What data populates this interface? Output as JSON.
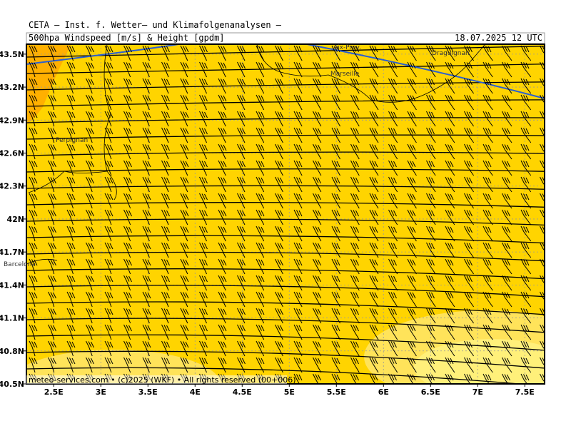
{
  "header": {
    "title": "CETA — Inst. f. Wetter— und Klimafolgenanalysen —",
    "subtitle": "500hpa Windspeed [m/s] & Height [gpdm]",
    "date": "18.07.2025 12 UTC"
  },
  "map": {
    "lonlim": [
      2.21,
      7.71
    ],
    "latlim": [
      40.5,
      43.59
    ],
    "lat_ticks": [
      {
        "value": 43.5,
        "label": "43.5N"
      },
      {
        "value": 43.2,
        "label": "43.2N"
      },
      {
        "value": 42.9,
        "label": "42.9N"
      },
      {
        "value": 42.6,
        "label": "42.6N"
      },
      {
        "value": 42.3,
        "label": "42.3N"
      },
      {
        "value": 42,
        "label": "42N"
      },
      {
        "value": 41.7,
        "label": "41.7N"
      },
      {
        "value": 41.4,
        "label": "41.4N"
      },
      {
        "value": 41.1,
        "label": "41.1N"
      },
      {
        "value": 40.8,
        "label": "40.8N"
      },
      {
        "value": 40.5,
        "label": "40.5N"
      }
    ],
    "lon_ticks": [
      {
        "value": 2.5,
        "label": "2.5E"
      },
      {
        "value": 3,
        "label": "3E"
      },
      {
        "value": 3.5,
        "label": "3.5E"
      },
      {
        "value": 4,
        "label": "4E"
      },
      {
        "value": 4.5,
        "label": "4.5E"
      },
      {
        "value": 5,
        "label": "5E"
      },
      {
        "value": 5.5,
        "label": "5.5E"
      },
      {
        "value": 6,
        "label": "6E"
      },
      {
        "value": 6.5,
        "label": "6.5E"
      },
      {
        "value": 7,
        "label": "7E"
      },
      {
        "value": 7.5,
        "label": "7.5E"
      }
    ],
    "cities": [
      "Perpignan",
      "Barcelona",
      "Marseille",
      "Aix-Prov.",
      "Draguignan"
    ],
    "footer": "meteo-services.com • (c)2025 (WKF) • All rights reserved (00+006)"
  }
}
